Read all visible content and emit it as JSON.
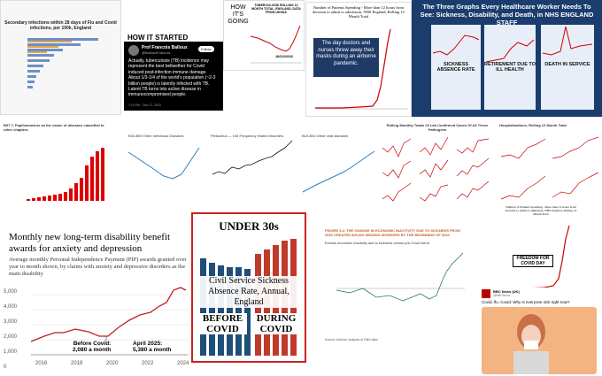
{
  "infections": {
    "title": "Secondary infections within 28 days of Flu and Covid infections, per 100k, England"
  },
  "tweet": {
    "heading": "HOW IT STARTED",
    "author": "Prof Francois Balloux",
    "handle": "@BallouxFrancois",
    "follow": "Follow",
    "body": "Actually, tuberculosis (TB) incidence may represent the best bellwether for Covid induced post-infection immune damage. About 1/3-1/4 of the world's population (~2-3 billion people) is latently infected with TB. Latent TB turns into active disease in immunocompromised people.",
    "time": "7:14 PM · Dec 17, 2022"
  },
  "tb": {
    "heading": "HOW IT'S GOING",
    "title": "TUBERCULOSIS ROLLING 12 MONTH TOTAL, ENGLAND, DATA FROM UKHSA",
    "date": "18/12/2022"
  },
  "waits": {
    "title": "Number of Patients Spending - More than 12 hours from decision to admit to admission, NHS England, Rolling 12 Month Total",
    "callout": "The day doctors and nurses threw away their masks during an airborne pandemic."
  },
  "staff": {
    "title": "The Three Graphs Every Healthcare Worker Needs To See: Sickness, Disability, and Death, in NHS ENGLAND STAFF",
    "panels": [
      "SICKNESS ABSENCE RATE",
      "RETIREMENT DUE TO ILL HEALTH",
      "DEATH IN SERVICE"
    ]
  },
  "small": {
    "papilloma": "B97.7, Papillomavirus as the cause of diseases classified to other chapters",
    "infectious": "B34-B99 Other Infectious Diseases",
    "frequency": "Pleisiotrus — 136 Frequency related disorders",
    "viral": "B15-B34 Other viral diseases",
    "pathogens": "Rolling Monthly Totals Of Lab Confirmed Cases Of All These Pathogens",
    "hospital": "Hospitalisations, Rolling 12 Month Total"
  },
  "disability": {
    "title": "Monthly new long-term disability benefit awards for anxiety and depression",
    "subtitle": "Average monthly Personal Independence Payment (PIP) awards granted over year to month shown, by claims with anxiety and depressive disorders as the main disability",
    "yticks": [
      "5,000",
      "4,000",
      "3,000",
      "2,000",
      "1,000",
      "0"
    ],
    "xticks": [
      "2016",
      "2018",
      "2020",
      "2022",
      "2024"
    ],
    "annotations": [
      "Before Covid:\n2,080 a month",
      "April 2025:\n5,380 a month"
    ]
  },
  "civil": {
    "heading": "UNDER 30s",
    "title": "Civil Service Sickness Absence Rate, Annual, England",
    "left": "BEFORE COVID",
    "right": "DURING COVID"
  },
  "inactivity": {
    "title": "FIGURE 3.4: THE CHANGE IN ECONOMIC INACTIVITY DUE TO SICKNESS FROM 2020 CREATED 800,000 MISSING WORKERS BY THE BEGINNING OF 2024",
    "subtitle": "Excess economic inactivity due to sickness versus pre-Covid trend",
    "source": "Source: Authors' analysis of ONS data"
  },
  "freedom": {
    "title": "Number of Patients Spending - More than 12 hours from decision to admit to admission, NHS England, Rolling 12 Month Total",
    "callout": "FREEDOM FOR COVID DAY"
  },
  "bbc": {
    "account": "BBC News (UK)",
    "handle": "@BBCNews",
    "body": "Covid, flu, Covid: Why is everyone sick right now?"
  }
}
